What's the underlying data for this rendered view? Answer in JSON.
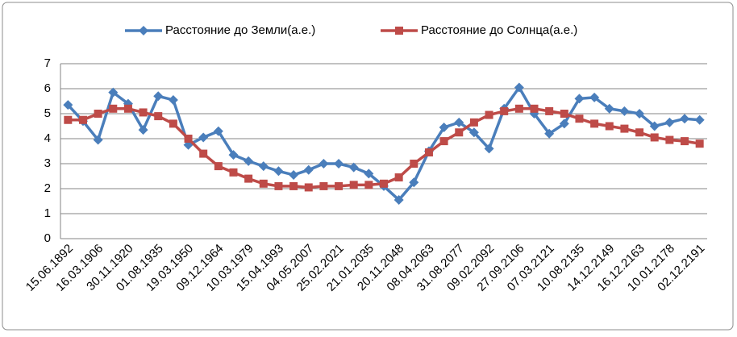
{
  "chart_data": {
    "type": "line",
    "categories": [
      "15.06.1892",
      null,
      "16.03.1906",
      null,
      "30.11.1920",
      null,
      "01.08.1935",
      null,
      "19.03.1950",
      null,
      "09.12.1964",
      null,
      "10.03.1979",
      null,
      "15.04.1993",
      null,
      "04.05.2007",
      null,
      "25.02.2021",
      null,
      "21.01.2035",
      null,
      "20.11.2048",
      null,
      "08.04.2063",
      null,
      "31.08.2077",
      null,
      "09.02.2092",
      null,
      "27.09.2106",
      null,
      "07.03.2121",
      null,
      "10.08.2135",
      null,
      "14.12.2149",
      null,
      "16.12.2163",
      null,
      "10.01.2178",
      null,
      "02.12.2191"
    ],
    "series": [
      {
        "name": "Расстояние до Земли(а.е.)",
        "color": "#4a7ebb",
        "marker": "diamond",
        "values": [
          5.35,
          4.7,
          3.95,
          5.85,
          5.4,
          4.35,
          5.7,
          5.55,
          3.75,
          4.05,
          4.3,
          3.35,
          3.1,
          2.9,
          2.7,
          2.55,
          2.75,
          3.0,
          3.0,
          2.85,
          2.6,
          2.1,
          1.55,
          2.25,
          3.5,
          4.45,
          4.65,
          4.25,
          3.6,
          5.2,
          6.05,
          5.0,
          4.2,
          4.6,
          5.6,
          5.65,
          5.2,
          5.1,
          5.0,
          4.5,
          4.65,
          4.8,
          4.75
        ]
      },
      {
        "name": "Расстояние до Солнца(а.е.)",
        "color": "#be4b48",
        "marker": "square",
        "values": [
          4.75,
          4.75,
          5.0,
          5.2,
          5.2,
          5.05,
          4.9,
          4.6,
          4.0,
          3.4,
          2.9,
          2.65,
          2.4,
          2.2,
          2.1,
          2.1,
          2.05,
          2.1,
          2.1,
          2.15,
          2.15,
          2.2,
          2.45,
          3.0,
          3.45,
          3.9,
          4.25,
          4.65,
          4.95,
          5.1,
          5.2,
          5.2,
          5.1,
          5.0,
          4.8,
          4.6,
          4.5,
          4.4,
          4.25,
          4.05,
          3.95,
          3.9,
          3.8
        ]
      }
    ],
    "ylim": [
      0,
      7
    ],
    "yticks": [
      0,
      1,
      2,
      3,
      4,
      5,
      6,
      7
    ],
    "grid": true,
    "legend": "top"
  }
}
